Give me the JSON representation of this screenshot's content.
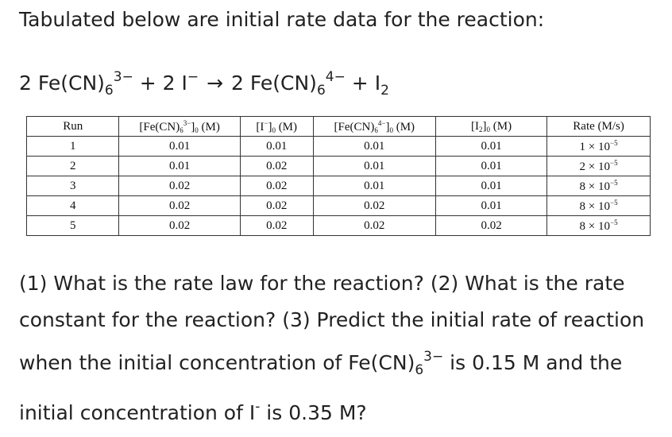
{
  "intro": "Tabulated below are initial rate data for the reaction:",
  "equation": {
    "coef1": "2",
    "species1": "Fe(CN)",
    "sub1": "6",
    "sup1": "3−",
    "plus1": "+",
    "coef2": "2",
    "species2": "I",
    "sup2": "−",
    "arrow": "→",
    "coef3": "2",
    "species3": "Fe(CN)",
    "sub3": "6",
    "sup3": "4−",
    "plus2": "+",
    "species4": "I",
    "sub4": "2"
  },
  "table": {
    "headers": {
      "run": "Run",
      "fe3": {
        "pre": "[Fe(CN)",
        "sub": "6",
        "sup": "3−",
        "post": "]",
        "sub0": "0",
        "unit": " (M)"
      },
      "i": {
        "pre": "[I",
        "sup": "−",
        "post": "]",
        "sub0": "0",
        "unit": " (M)"
      },
      "fe4": {
        "pre": "[Fe(CN)",
        "sub": "6",
        "sup": "4−",
        "post": "]",
        "sub0": "0",
        "unit": " (M)"
      },
      "i2": {
        "pre": "[I",
        "sub": "2",
        "post": "]",
        "sub0": "0",
        "unit": " (M)"
      },
      "rate": "Rate (M/s)"
    },
    "rows": [
      {
        "run": "1",
        "fe3": "0.01",
        "i": "0.01",
        "fe4": "0.01",
        "i2": "0.01",
        "rate_mant": "1 × 10",
        "rate_exp": "−5"
      },
      {
        "run": "2",
        "fe3": "0.01",
        "i": "0.02",
        "fe4": "0.01",
        "i2": "0.01",
        "rate_mant": "2 × 10",
        "rate_exp": "−5"
      },
      {
        "run": "3",
        "fe3": "0.02",
        "i": "0.02",
        "fe4": "0.01",
        "i2": "0.01",
        "rate_mant": "8 × 10",
        "rate_exp": "−5"
      },
      {
        "run": "4",
        "fe3": "0.02",
        "i": "0.02",
        "fe4": "0.02",
        "i2": "0.01",
        "rate_mant": "8 × 10",
        "rate_exp": "−5"
      },
      {
        "run": "5",
        "fe3": "0.02",
        "i": "0.02",
        "fe4": "0.02",
        "i2": "0.02",
        "rate_mant": "8 × 10",
        "rate_exp": "−5"
      }
    ]
  },
  "question": {
    "part1": "(1) What is the rate law for the reaction? (2) What is the rate constant for the reaction? (3) Predict the initial rate of reaction when the initial concentration of ",
    "species": "Fe(CN)",
    "sub": "6",
    "sup": "3−",
    "part2": " is 0.15 M and the initial concentration of I",
    "sup2": "-",
    "part3": " is 0.35 M?"
  }
}
